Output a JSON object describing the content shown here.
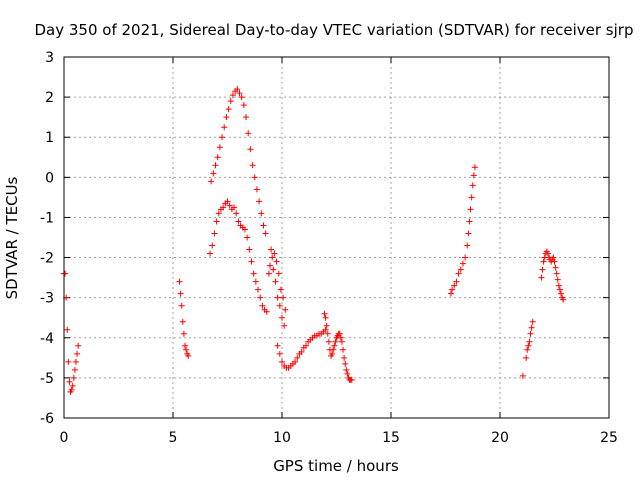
{
  "chart_data": {
    "type": "scatter",
    "title": "Day 350 of 2021, Sidereal Day-to-day VTEC variation (SDTVAR) for receiver sjrp",
    "xlabel": "GPS time / hours",
    "ylabel": "SDTVAR / TECUs",
    "xlim": [
      0,
      25
    ],
    "ylim": [
      -6,
      3
    ],
    "xticks": [
      "0",
      "5",
      "10",
      "15",
      "20",
      "25"
    ],
    "yticks": [
      "-6",
      "-5",
      "-4",
      "-3",
      "-2",
      "-1",
      "0",
      "1",
      "2",
      "3"
    ],
    "grid": true,
    "marker": "+",
    "color": "#ff0000",
    "segments": [
      {
        "x": [
          0.0,
          0.05,
          0.1,
          0.15,
          0.2,
          0.25,
          0.3,
          0.35,
          0.4,
          0.45,
          0.5,
          0.55,
          0.6,
          0.65
        ],
        "y": [
          -2.4,
          -2.4,
          -3.0,
          -3.8,
          -4.6,
          -5.1,
          -5.35,
          -5.3,
          -5.2,
          -5.0,
          -4.8,
          -4.6,
          -4.4,
          -4.2
        ]
      },
      {
        "x": [
          5.3,
          5.35,
          5.4,
          5.45,
          5.5,
          5.55,
          5.6,
          5.65,
          5.7
        ],
        "y": [
          -2.6,
          -2.9,
          -3.2,
          -3.6,
          -3.9,
          -4.2,
          -4.3,
          -4.4,
          -4.45
        ]
      },
      {
        "x": [
          6.75,
          6.85,
          6.95,
          7.05,
          7.15,
          7.25,
          7.35,
          7.45,
          7.55,
          7.65,
          7.75,
          7.85,
          7.95,
          8.05,
          8.15,
          8.25,
          8.35,
          8.45,
          8.55,
          8.65,
          8.75,
          8.85,
          8.95,
          9.05,
          9.15,
          9.25
        ],
        "y": [
          -0.1,
          0.1,
          0.3,
          0.5,
          0.75,
          1.0,
          1.25,
          1.5,
          1.7,
          1.9,
          2.05,
          2.15,
          2.2,
          2.1,
          2.0,
          1.8,
          1.5,
          1.1,
          0.7,
          0.3,
          0.0,
          -0.3,
          -0.6,
          -0.9,
          -1.2,
          -1.4
        ]
      },
      {
        "x": [
          6.7,
          6.8,
          6.9,
          7.0,
          7.1,
          7.2,
          7.3,
          7.4,
          7.5,
          7.6,
          7.7,
          7.8,
          7.9,
          8.0,
          8.1,
          8.2,
          8.3,
          8.4,
          8.5,
          8.6,
          8.7,
          8.8,
          8.9,
          9.0,
          9.1,
          9.2,
          9.3
        ],
        "y": [
          -1.9,
          -1.7,
          -1.4,
          -1.1,
          -0.9,
          -0.8,
          -0.75,
          -0.65,
          -0.6,
          -0.7,
          -0.8,
          -0.75,
          -0.9,
          -1.1,
          -1.2,
          -1.25,
          -1.3,
          -1.5,
          -1.8,
          -2.1,
          -2.4,
          -2.6,
          -2.8,
          -3.0,
          -3.2,
          -3.3,
          -3.35
        ]
      },
      {
        "x": [
          9.4,
          9.45,
          9.5,
          9.55,
          9.6,
          9.65,
          9.7,
          9.75,
          9.8,
          9.85,
          9.9,
          9.95,
          10.0,
          10.05,
          10.1,
          10.15
        ],
        "y": [
          -2.4,
          -2.2,
          -1.8,
          -2.0,
          -2.3,
          -1.9,
          -2.6,
          -2.1,
          -3.0,
          -2.4,
          -3.2,
          -2.8,
          -3.5,
          -3.0,
          -3.7,
          -3.3
        ]
      },
      {
        "x": [
          9.8,
          9.9,
          10.0,
          10.1,
          10.2,
          10.3,
          10.4,
          10.5,
          10.6,
          10.7,
          10.8,
          10.9,
          11.0,
          11.1,
          11.2,
          11.3,
          11.4,
          11.5,
          11.6,
          11.7,
          11.8,
          11.9,
          12.0
        ],
        "y": [
          -4.2,
          -4.4,
          -4.6,
          -4.7,
          -4.75,
          -4.75,
          -4.7,
          -4.65,
          -4.6,
          -4.5,
          -4.4,
          -4.35,
          -4.25,
          -4.2,
          -4.1,
          -4.05,
          -4.0,
          -3.95,
          -3.95,
          -3.9,
          -3.9,
          -3.85,
          -3.8
        ]
      },
      {
        "x": [
          11.95,
          12.0,
          12.05,
          12.1,
          12.15,
          12.2,
          12.25,
          12.3,
          12.35,
          12.4,
          12.45,
          12.5,
          12.55,
          12.6,
          12.65,
          12.7,
          12.75,
          12.8,
          12.85,
          12.9,
          12.95,
          13.0,
          13.05,
          13.1,
          13.15,
          13.2
        ],
        "y": [
          -3.4,
          -3.5,
          -3.7,
          -3.9,
          -4.1,
          -4.3,
          -4.45,
          -4.4,
          -4.3,
          -4.2,
          -4.1,
          -4.0,
          -3.95,
          -3.9,
          -3.9,
          -4.0,
          -4.1,
          -4.3,
          -4.5,
          -4.65,
          -4.8,
          -4.9,
          -5.0,
          -5.05,
          -5.05,
          -5.05
        ]
      },
      {
        "x": [
          17.75,
          17.8,
          17.9,
          18.0,
          18.1,
          18.2,
          18.3,
          18.4,
          18.5,
          18.55,
          18.6,
          18.65,
          18.7,
          18.75,
          18.8,
          18.85
        ],
        "y": [
          -2.9,
          -2.8,
          -2.7,
          -2.6,
          -2.4,
          -2.3,
          -2.15,
          -2.0,
          -1.7,
          -1.4,
          -1.1,
          -0.8,
          -0.5,
          -0.2,
          0.05,
          0.25
        ]
      },
      {
        "x": [
          21.05,
          21.2,
          21.25,
          21.3,
          21.35,
          21.4,
          21.45,
          21.5
        ],
        "y": [
          -4.95,
          -4.5,
          -4.3,
          -4.2,
          -4.1,
          -3.9,
          -3.75,
          -3.6
        ]
      },
      {
        "x": [
          21.9,
          21.95,
          22.0,
          22.05,
          22.1,
          22.15,
          22.2,
          22.25,
          22.3,
          22.35,
          22.4,
          22.45,
          22.5,
          22.55,
          22.6,
          22.65,
          22.7,
          22.75,
          22.8,
          22.85,
          22.9
        ],
        "y": [
          -2.5,
          -2.3,
          -2.1,
          -2.0,
          -1.9,
          -1.85,
          -1.9,
          -2.0,
          -2.05,
          -2.1,
          -2.05,
          -2.0,
          -2.1,
          -2.25,
          -2.4,
          -2.55,
          -2.7,
          -2.8,
          -2.9,
          -3.0,
          -3.05
        ]
      }
    ]
  }
}
